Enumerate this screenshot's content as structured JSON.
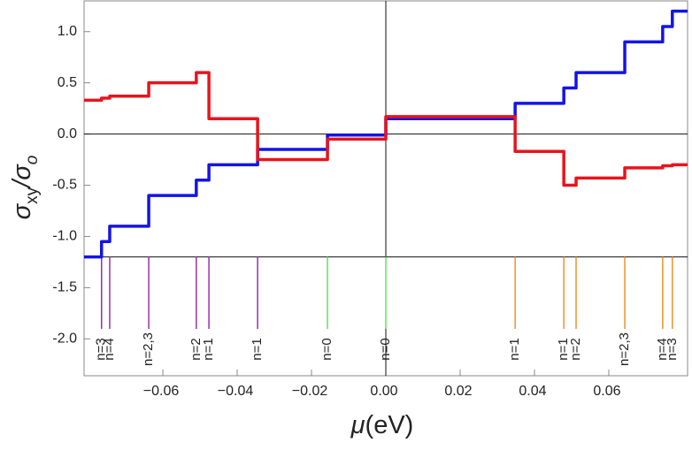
{
  "chart_data": {
    "type": "line",
    "xlabel_parts": [
      "μ",
      "(eV)"
    ],
    "ylabel_parts": [
      "σ",
      "xy",
      "/σ",
      "o"
    ],
    "xlim": [
      -0.0812,
      0.0812
    ],
    "ylim": [
      -2.36,
      1.3
    ],
    "xticks": [
      {
        "value": -0.06,
        "label": "−0.06"
      },
      {
        "value": -0.04,
        "label": "−0.04"
      },
      {
        "value": -0.02,
        "label": "−0.02"
      },
      {
        "value": 0,
        "label": "0.00"
      },
      {
        "value": 0.02,
        "label": "0.02"
      },
      {
        "value": 0.04,
        "label": "0.04"
      },
      {
        "value": 0.06,
        "label": "0.06"
      }
    ],
    "yticks": [
      {
        "value": 1,
        "label": "1.0"
      },
      {
        "value": 0.5,
        "label": "0.5"
      },
      {
        "value": 0,
        "label": "0.0"
      },
      {
        "value": -0.5,
        "label": "-0.5"
      },
      {
        "value": -1,
        "label": "-1.0"
      },
      {
        "value": -1.5,
        "label": "-1.5"
      },
      {
        "value": -2,
        "label": "-2.0"
      }
    ],
    "hlines": [
      0,
      -1.2
    ],
    "vlines": [
      0
    ],
    "x": [
      -0.0812,
      -0.0765,
      -0.0765,
      -0.0743,
      -0.0743,
      -0.0638,
      -0.0638,
      -0.051,
      -0.051,
      -0.0476,
      -0.0476,
      -0.0345,
      -0.0345,
      -0.0157,
      -0.0157,
      0,
      0,
      0.0348,
      0.0348,
      0.0479,
      0.0479,
      0.0512,
      0.0512,
      0.0643,
      0.0643,
      0.0745,
      0.0745,
      0.0771,
      0.0771,
      0.0812
    ],
    "series": [
      {
        "color": "#1414e6",
        "values": [
          -1.2,
          -1.2,
          -1.05,
          -1.05,
          -0.9,
          -0.9,
          -0.6,
          -0.6,
          -0.45,
          -0.45,
          -0.3,
          -0.3,
          -0.15,
          -0.15,
          -0.01,
          -0.01,
          0.15,
          0.15,
          0.3,
          0.3,
          0.45,
          0.45,
          0.6,
          0.6,
          0.9,
          0.9,
          1.05,
          1.05,
          1.2,
          1.2
        ]
      },
      {
        "color": "#e8141c",
        "values": [
          0.33,
          0.33,
          0.35,
          0.35,
          0.37,
          0.37,
          0.5,
          0.5,
          0.6,
          0.6,
          0.15,
          0.15,
          -0.25,
          -0.25,
          -0.05,
          -0.05,
          0.17,
          0.17,
          -0.17,
          -0.17,
          -0.5,
          -0.5,
          -0.43,
          -0.43,
          -0.33,
          -0.33,
          -0.31,
          -0.31,
          -0.3,
          -0.3
        ]
      }
    ],
    "markers": [
      {
        "x": -0.0765,
        "label": "n=3",
        "color": "#9a2fa8"
      },
      {
        "x": -0.0743,
        "label": "n=4",
        "color": "#9a2fa8"
      },
      {
        "x": -0.0638,
        "label": "n=2,3",
        "color": "#9a2fa8"
      },
      {
        "x": -0.051,
        "label": "n=2",
        "color": "#9a2fa8"
      },
      {
        "x": -0.0476,
        "label": "n=1",
        "color": "#9a2fa8"
      },
      {
        "x": -0.0345,
        "label": "n=1",
        "color": "#9a2fa8"
      },
      {
        "x": -0.0157,
        "label": "n=0",
        "color": "#5ee35e"
      },
      {
        "x": 0,
        "label": "n=0",
        "color": "#5ee35e"
      },
      {
        "x": 0.0348,
        "label": "n=1",
        "color": "#f0922b"
      },
      {
        "x": 0.0479,
        "label": "n=1",
        "color": "#f0922b"
      },
      {
        "x": 0.0512,
        "label": "n=2",
        "color": "#f0922b"
      },
      {
        "x": 0.0643,
        "label": "n=2,3",
        "color": "#f0922b"
      },
      {
        "x": 0.0745,
        "label": "n=4",
        "color": "#f0922b"
      },
      {
        "x": 0.0771,
        "label": "n=3",
        "color": "#f0922b"
      }
    ]
  }
}
